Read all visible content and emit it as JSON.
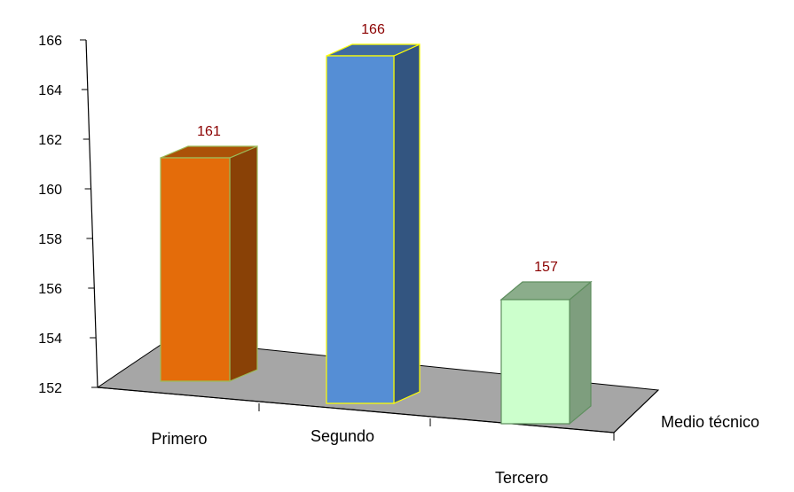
{
  "chart_data": {
    "type": "bar",
    "categories": [
      "Primero",
      "Segundo",
      "Tercero"
    ],
    "series": [
      {
        "name": "Medio técnico",
        "values": [
          161,
          166,
          157
        ]
      }
    ],
    "ylim": [
      152,
      166
    ],
    "y_ticks": [
      "152",
      "154",
      "156",
      "158",
      "160",
      "162",
      "164",
      "166"
    ],
    "data_labels": [
      "161",
      "166",
      "157"
    ],
    "bar_colors": [
      "#E46C0A",
      "#558ED5",
      "#CCFFCC"
    ],
    "label_color": "#8B0000",
    "floor_color": "#A6A6A6",
    "grid": false
  }
}
